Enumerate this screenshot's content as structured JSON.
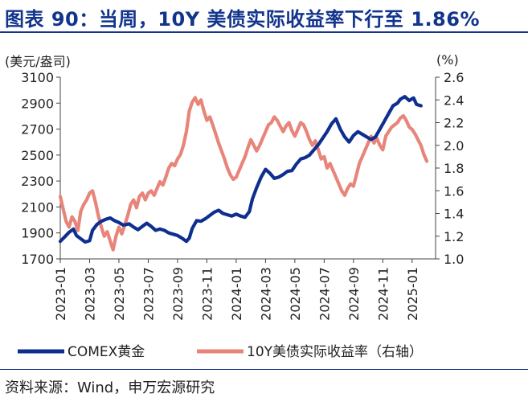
{
  "title": "图表 90：当周，10Y 美债实际收益率下行至 1.86%",
  "source": "资料来源：Wind，申万宏源研究",
  "colors": {
    "gold": "#0f2f8f",
    "yield": "#e8857a",
    "title": "#12348c"
  },
  "chart_data": {
    "type": "line",
    "ylabel_left": "(美元/盎司)",
    "ylabel_right": "(%)",
    "ylim_left": [
      1700,
      3100
    ],
    "ylim_right": [
      1.0,
      2.6
    ],
    "yticks_left": [
      "3100",
      "2900",
      "2700",
      "2500",
      "2300",
      "2100",
      "1900",
      "1700"
    ],
    "yticks_right": [
      "2.6",
      "2.4",
      "2.2",
      "2.0",
      "1.8",
      "1.6",
      "1.4",
      "1.2",
      "1.0"
    ],
    "xticks": [
      "2023-01",
      "2023-03",
      "2023-05",
      "2023-07",
      "2023-09",
      "2023-11",
      "2024-01",
      "2024-03",
      "2024-05",
      "2024-07",
      "2024-09",
      "2024-11",
      "2025-01"
    ],
    "x_range_months": [
      0,
      25.6
    ],
    "series": [
      {
        "name": "COMEX黄金",
        "axis": "left",
        "points": [
          [
            0.0,
            1835
          ],
          [
            0.3,
            1870
          ],
          [
            0.6,
            1905
          ],
          [
            0.9,
            1930
          ],
          [
            1.1,
            1880
          ],
          [
            1.4,
            1855
          ],
          [
            1.7,
            1830
          ],
          [
            2.0,
            1840
          ],
          [
            2.2,
            1920
          ],
          [
            2.5,
            1965
          ],
          [
            2.8,
            1990
          ],
          [
            3.1,
            2005
          ],
          [
            3.4,
            2015
          ],
          [
            3.7,
            1995
          ],
          [
            4.0,
            1980
          ],
          [
            4.3,
            1960
          ],
          [
            4.7,
            1970
          ],
          [
            5.0,
            1945
          ],
          [
            5.3,
            1925
          ],
          [
            5.6,
            1950
          ],
          [
            5.9,
            1975
          ],
          [
            6.2,
            1950
          ],
          [
            6.5,
            1920
          ],
          [
            6.8,
            1930
          ],
          [
            7.1,
            1920
          ],
          [
            7.4,
            1900
          ],
          [
            7.7,
            1890
          ],
          [
            8.0,
            1880
          ],
          [
            8.3,
            1860
          ],
          [
            8.6,
            1835
          ],
          [
            8.8,
            1860
          ],
          [
            9.0,
            1935
          ],
          [
            9.3,
            1995
          ],
          [
            9.6,
            1990
          ],
          [
            9.9,
            2010
          ],
          [
            10.2,
            2035
          ],
          [
            10.5,
            2060
          ],
          [
            10.8,
            2075
          ],
          [
            11.1,
            2050
          ],
          [
            11.4,
            2040
          ],
          [
            11.7,
            2030
          ],
          [
            12.0,
            2045
          ],
          [
            12.3,
            2030
          ],
          [
            12.6,
            2020
          ],
          [
            12.9,
            2065
          ],
          [
            13.1,
            2160
          ],
          [
            13.4,
            2250
          ],
          [
            13.7,
            2330
          ],
          [
            14.0,
            2390
          ],
          [
            14.3,
            2360
          ],
          [
            14.6,
            2320
          ],
          [
            14.9,
            2330
          ],
          [
            15.2,
            2350
          ],
          [
            15.5,
            2375
          ],
          [
            15.8,
            2380
          ],
          [
            16.1,
            2430
          ],
          [
            16.4,
            2470
          ],
          [
            16.7,
            2480
          ],
          [
            17.0,
            2500
          ],
          [
            17.3,
            2540
          ],
          [
            17.6,
            2580
          ],
          [
            17.9,
            2630
          ],
          [
            18.2,
            2680
          ],
          [
            18.5,
            2740
          ],
          [
            18.8,
            2780
          ],
          [
            19.1,
            2700
          ],
          [
            19.4,
            2640
          ],
          [
            19.7,
            2600
          ],
          [
            20.0,
            2650
          ],
          [
            20.3,
            2680
          ],
          [
            20.6,
            2660
          ],
          [
            20.9,
            2640
          ],
          [
            21.2,
            2620
          ],
          [
            21.5,
            2640
          ],
          [
            21.8,
            2700
          ],
          [
            22.1,
            2760
          ],
          [
            22.4,
            2820
          ],
          [
            22.7,
            2880
          ],
          [
            23.0,
            2900
          ],
          [
            23.2,
            2930
          ],
          [
            23.5,
            2950
          ],
          [
            23.8,
            2920
          ],
          [
            24.1,
            2940
          ],
          [
            24.3,
            2890
          ],
          [
            24.6,
            2880
          ]
        ]
      },
      {
        "name": "10Y美债实际收益率（右轴）",
        "axis": "right",
        "points": [
          [
            0.0,
            1.55
          ],
          [
            0.2,
            1.44
          ],
          [
            0.4,
            1.33
          ],
          [
            0.6,
            1.28
          ],
          [
            0.8,
            1.37
          ],
          [
            1.0,
            1.33
          ],
          [
            1.2,
            1.25
          ],
          [
            1.4,
            1.42
          ],
          [
            1.6,
            1.48
          ],
          [
            1.8,
            1.52
          ],
          [
            2.0,
            1.58
          ],
          [
            2.2,
            1.6
          ],
          [
            2.4,
            1.5
          ],
          [
            2.6,
            1.38
          ],
          [
            2.8,
            1.28
          ],
          [
            3.0,
            1.2
          ],
          [
            3.2,
            1.24
          ],
          [
            3.4,
            1.16
          ],
          [
            3.6,
            1.08
          ],
          [
            3.8,
            1.2
          ],
          [
            4.0,
            1.28
          ],
          [
            4.2,
            1.22
          ],
          [
            4.4,
            1.3
          ],
          [
            4.6,
            1.38
          ],
          [
            4.8,
            1.48
          ],
          [
            5.0,
            1.52
          ],
          [
            5.2,
            1.45
          ],
          [
            5.4,
            1.55
          ],
          [
            5.6,
            1.58
          ],
          [
            5.8,
            1.52
          ],
          [
            6.0,
            1.58
          ],
          [
            6.2,
            1.6
          ],
          [
            6.4,
            1.56
          ],
          [
            6.6,
            1.62
          ],
          [
            6.8,
            1.68
          ],
          [
            7.0,
            1.65
          ],
          [
            7.2,
            1.72
          ],
          [
            7.4,
            1.8
          ],
          [
            7.6,
            1.84
          ],
          [
            7.8,
            1.82
          ],
          [
            8.0,
            1.88
          ],
          [
            8.2,
            1.92
          ],
          [
            8.4,
            2.0
          ],
          [
            8.6,
            2.12
          ],
          [
            8.8,
            2.3
          ],
          [
            9.0,
            2.38
          ],
          [
            9.2,
            2.42
          ],
          [
            9.4,
            2.36
          ],
          [
            9.6,
            2.4
          ],
          [
            9.8,
            2.3
          ],
          [
            10.0,
            2.22
          ],
          [
            10.2,
            2.25
          ],
          [
            10.4,
            2.18
          ],
          [
            10.6,
            2.1
          ],
          [
            10.8,
            2.02
          ],
          [
            11.0,
            1.95
          ],
          [
            11.2,
            1.88
          ],
          [
            11.4,
            1.8
          ],
          [
            11.6,
            1.74
          ],
          [
            11.8,
            1.7
          ],
          [
            12.0,
            1.72
          ],
          [
            12.2,
            1.78
          ],
          [
            12.4,
            1.84
          ],
          [
            12.6,
            1.9
          ],
          [
            12.8,
            1.98
          ],
          [
            13.0,
            2.05
          ],
          [
            13.2,
            2.0
          ],
          [
            13.4,
            1.95
          ],
          [
            13.6,
            2.0
          ],
          [
            13.8,
            2.06
          ],
          [
            14.0,
            2.12
          ],
          [
            14.2,
            2.18
          ],
          [
            14.4,
            2.2
          ],
          [
            14.6,
            2.25
          ],
          [
            14.8,
            2.22
          ],
          [
            15.0,
            2.17
          ],
          [
            15.2,
            2.12
          ],
          [
            15.4,
            2.17
          ],
          [
            15.6,
            2.2
          ],
          [
            15.8,
            2.13
          ],
          [
            16.0,
            2.08
          ],
          [
            16.2,
            2.14
          ],
          [
            16.4,
            2.2
          ],
          [
            16.6,
            2.18
          ],
          [
            16.8,
            2.12
          ],
          [
            17.0,
            2.05
          ],
          [
            17.2,
            2.0
          ],
          [
            17.4,
            2.04
          ],
          [
            17.6,
            1.96
          ],
          [
            17.8,
            1.88
          ],
          [
            18.0,
            1.9
          ],
          [
            18.2,
            1.8
          ],
          [
            18.4,
            1.84
          ],
          [
            18.6,
            1.78
          ],
          [
            18.8,
            1.72
          ],
          [
            19.0,
            1.66
          ],
          [
            19.2,
            1.6
          ],
          [
            19.4,
            1.56
          ],
          [
            19.6,
            1.62
          ],
          [
            19.8,
            1.66
          ],
          [
            20.0,
            1.64
          ],
          [
            20.2,
            1.74
          ],
          [
            20.4,
            1.84
          ],
          [
            20.6,
            1.9
          ],
          [
            20.8,
            1.96
          ],
          [
            21.0,
            2.02
          ],
          [
            21.2,
            2.08
          ],
          [
            21.4,
            2.02
          ],
          [
            21.6,
            2.06
          ],
          [
            21.8,
            2.0
          ],
          [
            22.0,
            1.96
          ],
          [
            22.2,
            2.08
          ],
          [
            22.4,
            2.12
          ],
          [
            22.6,
            2.16
          ],
          [
            22.8,
            2.18
          ],
          [
            23.0,
            2.2
          ],
          [
            23.2,
            2.24
          ],
          [
            23.4,
            2.26
          ],
          [
            23.6,
            2.22
          ],
          [
            23.8,
            2.16
          ],
          [
            24.0,
            2.14
          ],
          [
            24.2,
            2.1
          ],
          [
            24.4,
            2.05
          ],
          [
            24.6,
            2.0
          ],
          [
            24.8,
            1.92
          ],
          [
            25.0,
            1.86
          ]
        ]
      }
    ]
  }
}
